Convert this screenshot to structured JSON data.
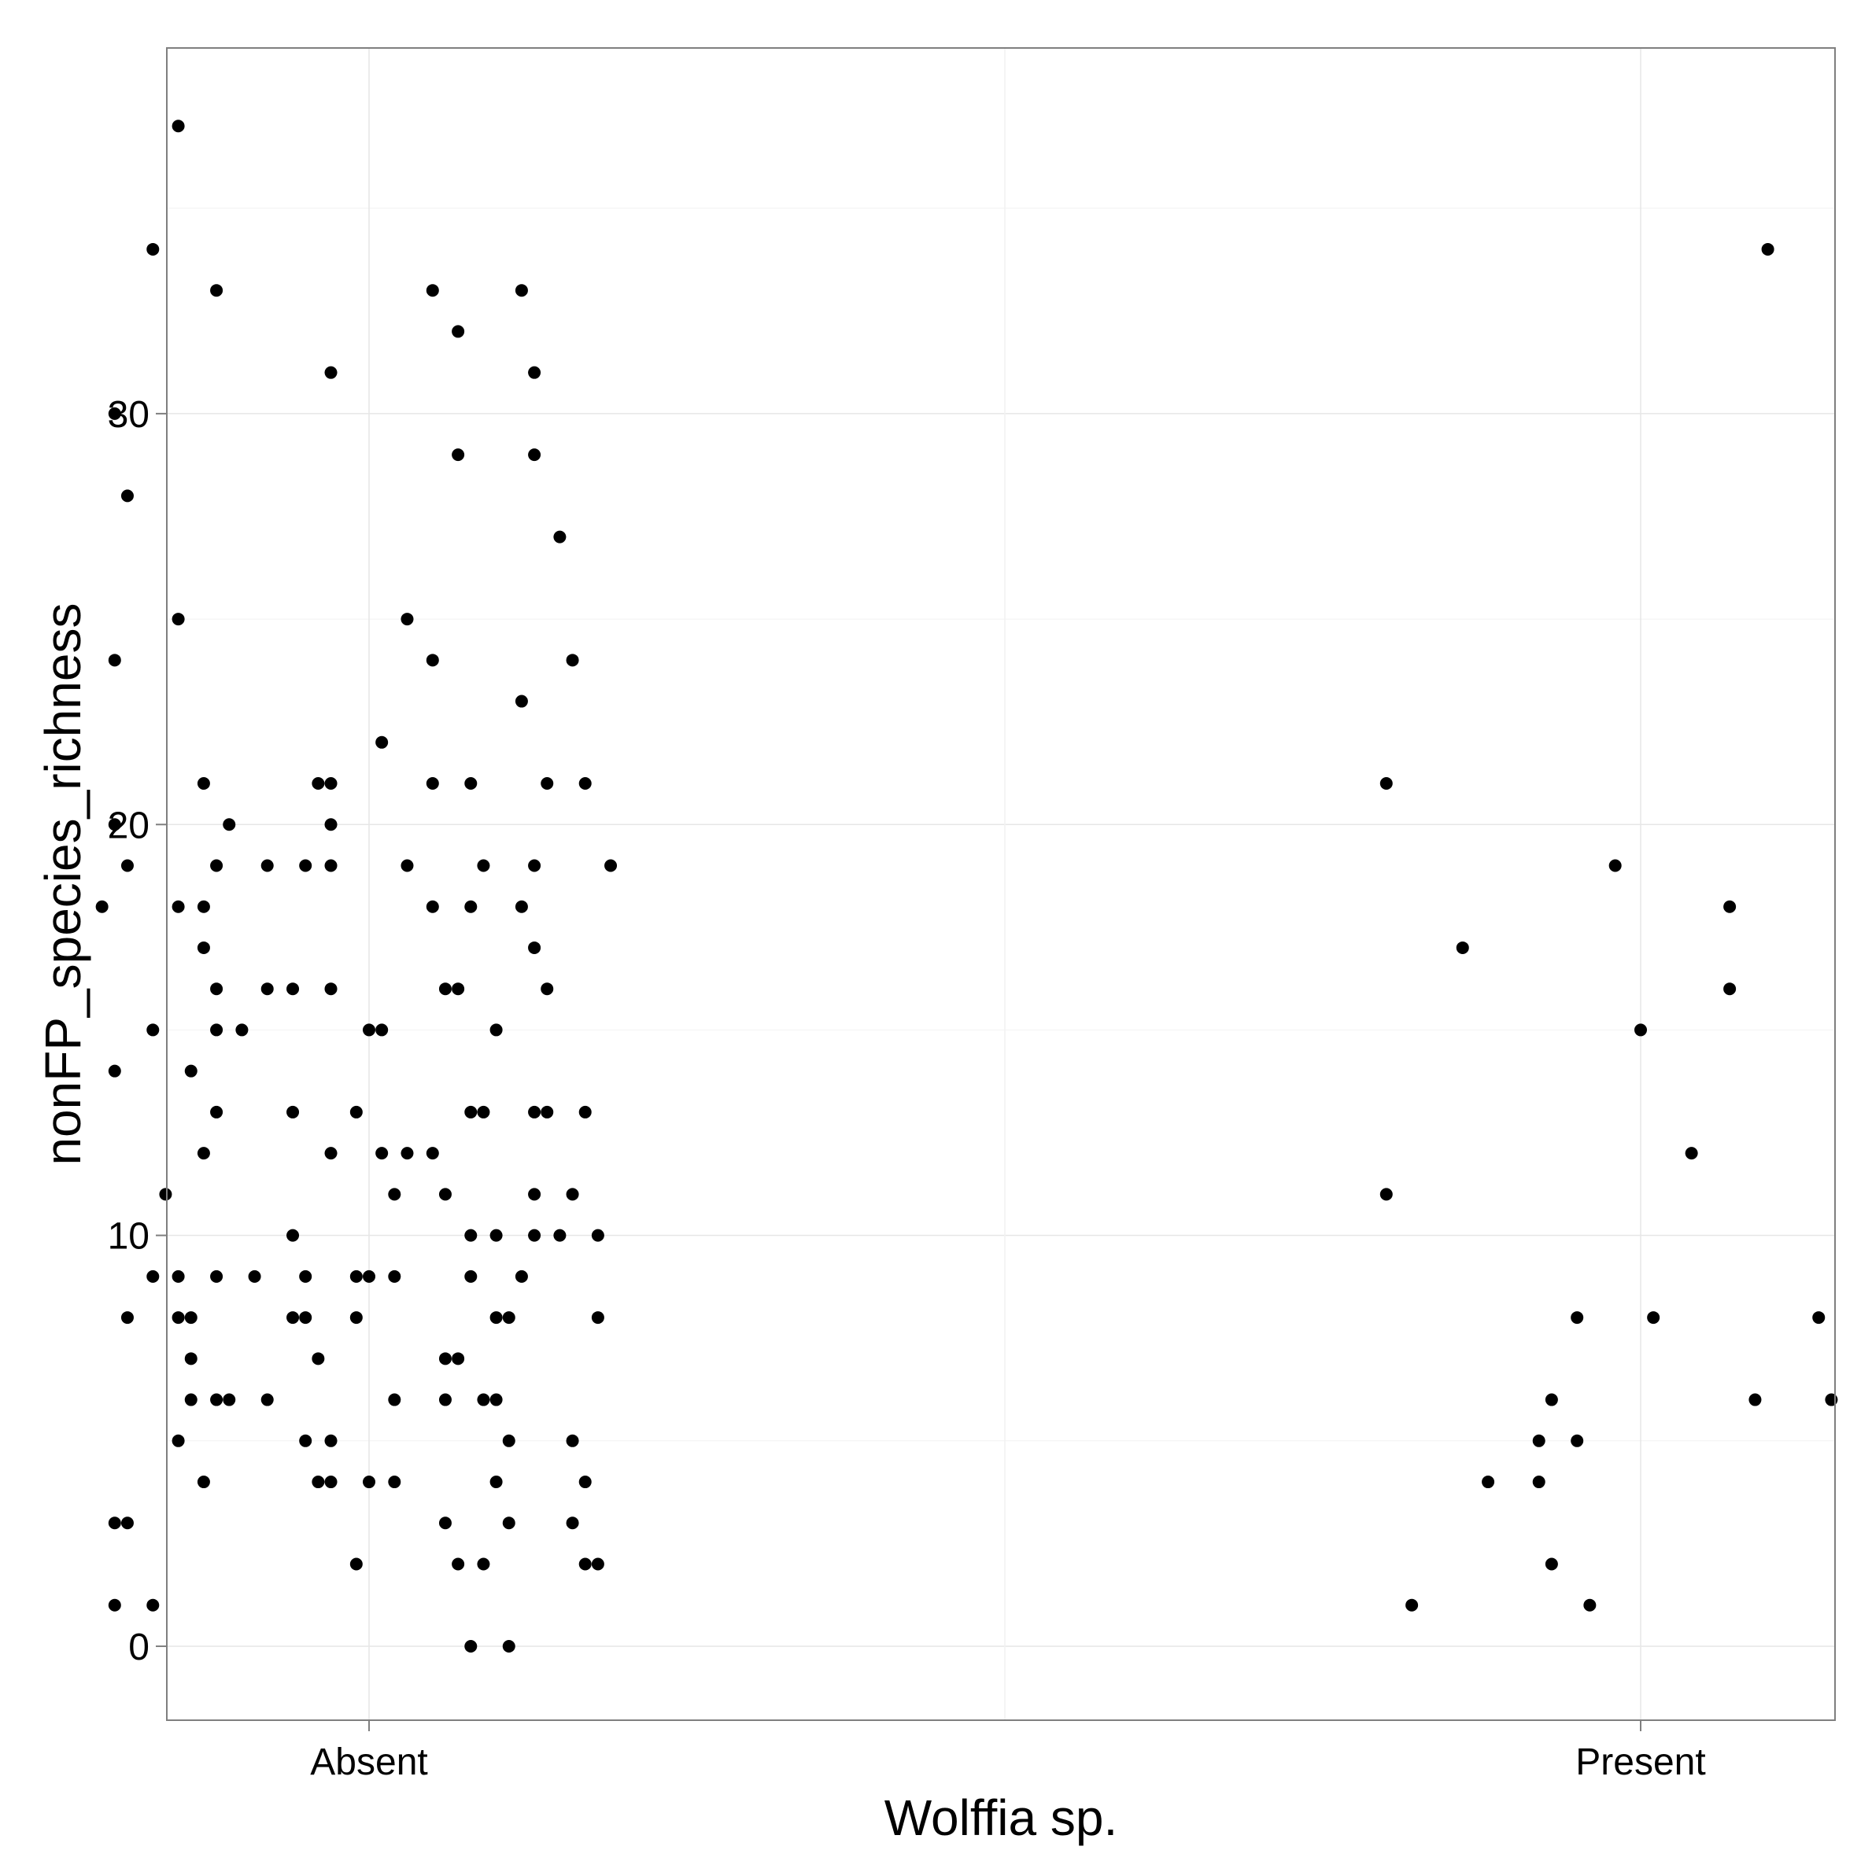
{
  "chart_data": {
    "type": "scatter",
    "title": "",
    "xlabel": "Wolffia sp.",
    "ylabel": "nonFP_species_richness",
    "categories": [
      "Absent",
      "Present"
    ],
    "y_ticks": [
      "0",
      "10",
      "20",
      "30"
    ],
    "ylim": [
      -1.8,
      38.9
    ],
    "grid": true,
    "jitter": true,
    "colors": {
      "point": "#000000",
      "grid": "#ebebeb",
      "border": "#7f7f7f",
      "background": "#ffffff"
    },
    "series": [
      {
        "category": "Absent",
        "points": [
          {
            "x": 0.85,
            "y": 37
          },
          {
            "x": 0.83,
            "y": 34
          },
          {
            "x": 0.88,
            "y": 33
          },
          {
            "x": 0.97,
            "y": 31
          },
          {
            "x": 0.8,
            "y": 30
          },
          {
            "x": 0.81,
            "y": 28
          },
          {
            "x": 0.85,
            "y": 25
          },
          {
            "x": 0.8,
            "y": 24
          },
          {
            "x": 0.87,
            "y": 21
          },
          {
            "x": 0.96,
            "y": 21
          },
          {
            "x": 0.97,
            "y": 21
          },
          {
            "x": 0.8,
            "y": 20
          },
          {
            "x": 0.89,
            "y": 20
          },
          {
            "x": 0.97,
            "y": 20
          },
          {
            "x": 0.81,
            "y": 19
          },
          {
            "x": 0.88,
            "y": 19
          },
          {
            "x": 0.92,
            "y": 19
          },
          {
            "x": 0.95,
            "y": 19
          },
          {
            "x": 0.97,
            "y": 19
          },
          {
            "x": 0.79,
            "y": 18
          },
          {
            "x": 0.85,
            "y": 18
          },
          {
            "x": 0.87,
            "y": 18
          },
          {
            "x": 0.87,
            "y": 17
          },
          {
            "x": 0.88,
            "y": 16
          },
          {
            "x": 0.92,
            "y": 16
          },
          {
            "x": 0.94,
            "y": 16
          },
          {
            "x": 0.97,
            "y": 16
          },
          {
            "x": 0.83,
            "y": 15
          },
          {
            "x": 0.88,
            "y": 15
          },
          {
            "x": 0.9,
            "y": 15
          },
          {
            "x": 0.8,
            "y": 14
          },
          {
            "x": 0.86,
            "y": 14
          },
          {
            "x": 0.88,
            "y": 13
          },
          {
            "x": 0.94,
            "y": 13
          },
          {
            "x": 0.99,
            "y": 13
          },
          {
            "x": 0.87,
            "y": 12
          },
          {
            "x": 0.97,
            "y": 12
          },
          {
            "x": 0.84,
            "y": 11
          },
          {
            "x": 0.94,
            "y": 10
          },
          {
            "x": 0.83,
            "y": 9
          },
          {
            "x": 0.85,
            "y": 9
          },
          {
            "x": 0.88,
            "y": 9
          },
          {
            "x": 0.91,
            "y": 9
          },
          {
            "x": 0.95,
            "y": 9
          },
          {
            "x": 0.99,
            "y": 9
          },
          {
            "x": 0.81,
            "y": 8
          },
          {
            "x": 0.85,
            "y": 8
          },
          {
            "x": 0.86,
            "y": 8
          },
          {
            "x": 0.94,
            "y": 8
          },
          {
            "x": 0.95,
            "y": 8
          },
          {
            "x": 0.99,
            "y": 8
          },
          {
            "x": 0.86,
            "y": 7
          },
          {
            "x": 0.96,
            "y": 7
          },
          {
            "x": 0.86,
            "y": 6
          },
          {
            "x": 0.88,
            "y": 6
          },
          {
            "x": 0.89,
            "y": 6
          },
          {
            "x": 0.92,
            "y": 6
          },
          {
            "x": 0.85,
            "y": 5
          },
          {
            "x": 0.95,
            "y": 5
          },
          {
            "x": 0.97,
            "y": 5
          },
          {
            "x": 0.87,
            "y": 4
          },
          {
            "x": 0.96,
            "y": 4
          },
          {
            "x": 0.97,
            "y": 4
          },
          {
            "x": 0.8,
            "y": 3
          },
          {
            "x": 0.81,
            "y": 3
          },
          {
            "x": 0.8,
            "y": 1
          },
          {
            "x": 0.83,
            "y": 1
          },
          {
            "x": 1.05,
            "y": 33
          },
          {
            "x": 1.12,
            "y": 33
          },
          {
            "x": 1.07,
            "y": 32
          },
          {
            "x": 1.13,
            "y": 31
          },
          {
            "x": 1.07,
            "y": 29
          },
          {
            "x": 1.13,
            "y": 29
          },
          {
            "x": 1.15,
            "y": 27
          },
          {
            "x": 1.03,
            "y": 25
          },
          {
            "x": 1.05,
            "y": 24
          },
          {
            "x": 1.16,
            "y": 24
          },
          {
            "x": 1.01,
            "y": 22
          },
          {
            "x": 1.12,
            "y": 23
          },
          {
            "x": 1.05,
            "y": 21
          },
          {
            "x": 1.08,
            "y": 21
          },
          {
            "x": 1.14,
            "y": 21
          },
          {
            "x": 1.17,
            "y": 21
          },
          {
            "x": 1.03,
            "y": 19
          },
          {
            "x": 1.09,
            "y": 19
          },
          {
            "x": 1.13,
            "y": 19
          },
          {
            "x": 1.19,
            "y": 19
          },
          {
            "x": 1.05,
            "y": 18
          },
          {
            "x": 1.08,
            "y": 18
          },
          {
            "x": 1.12,
            "y": 18
          },
          {
            "x": 1.13,
            "y": 17
          },
          {
            "x": 1.06,
            "y": 16
          },
          {
            "x": 1.07,
            "y": 16
          },
          {
            "x": 1.14,
            "y": 16
          },
          {
            "x": 1.0,
            "y": 15
          },
          {
            "x": 1.01,
            "y": 15
          },
          {
            "x": 1.1,
            "y": 15
          },
          {
            "x": 1.08,
            "y": 13
          },
          {
            "x": 1.09,
            "y": 13
          },
          {
            "x": 1.13,
            "y": 13
          },
          {
            "x": 1.14,
            "y": 13
          },
          {
            "x": 1.17,
            "y": 13
          },
          {
            "x": 1.01,
            "y": 12
          },
          {
            "x": 1.03,
            "y": 12
          },
          {
            "x": 1.05,
            "y": 12
          },
          {
            "x": 1.02,
            "y": 11
          },
          {
            "x": 1.06,
            "y": 11
          },
          {
            "x": 1.13,
            "y": 11
          },
          {
            "x": 1.16,
            "y": 11
          },
          {
            "x": 1.08,
            "y": 10
          },
          {
            "x": 1.1,
            "y": 10
          },
          {
            "x": 1.13,
            "y": 10
          },
          {
            "x": 1.15,
            "y": 10
          },
          {
            "x": 1.18,
            "y": 10
          },
          {
            "x": 1.0,
            "y": 9
          },
          {
            "x": 1.02,
            "y": 9
          },
          {
            "x": 1.08,
            "y": 9
          },
          {
            "x": 1.12,
            "y": 9
          },
          {
            "x": 1.1,
            "y": 8
          },
          {
            "x": 1.11,
            "y": 8
          },
          {
            "x": 1.18,
            "y": 8
          },
          {
            "x": 1.06,
            "y": 7
          },
          {
            "x": 1.07,
            "y": 7
          },
          {
            "x": 1.02,
            "y": 6
          },
          {
            "x": 1.06,
            "y": 6
          },
          {
            "x": 1.09,
            "y": 6
          },
          {
            "x": 1.1,
            "y": 6
          },
          {
            "x": 1.11,
            "y": 5
          },
          {
            "x": 1.16,
            "y": 5
          },
          {
            "x": 1.0,
            "y": 4
          },
          {
            "x": 1.02,
            "y": 4
          },
          {
            "x": 1.1,
            "y": 4
          },
          {
            "x": 1.17,
            "y": 4
          },
          {
            "x": 1.06,
            "y": 3
          },
          {
            "x": 1.11,
            "y": 3
          },
          {
            "x": 1.16,
            "y": 3
          },
          {
            "x": 0.99,
            "y": 2
          },
          {
            "x": 1.07,
            "y": 2
          },
          {
            "x": 1.09,
            "y": 2
          },
          {
            "x": 1.17,
            "y": 2
          },
          {
            "x": 1.18,
            "y": 2
          },
          {
            "x": 1.08,
            "y": 0
          },
          {
            "x": 1.11,
            "y": 0
          }
        ]
      },
      {
        "category": "Present",
        "points": [
          {
            "x": 2.1,
            "y": 34
          },
          {
            "x": 1.8,
            "y": 21
          },
          {
            "x": 1.98,
            "y": 19
          },
          {
            "x": 2.07,
            "y": 18
          },
          {
            "x": 1.86,
            "y": 17
          },
          {
            "x": 2.07,
            "y": 16
          },
          {
            "x": 2.0,
            "y": 15
          },
          {
            "x": 2.04,
            "y": 12
          },
          {
            "x": 1.8,
            "y": 11
          },
          {
            "x": 1.95,
            "y": 8
          },
          {
            "x": 2.01,
            "y": 8
          },
          {
            "x": 2.14,
            "y": 8
          },
          {
            "x": 2.19,
            "y": 7
          },
          {
            "x": 1.93,
            "y": 6
          },
          {
            "x": 2.09,
            "y": 6
          },
          {
            "x": 2.15,
            "y": 6
          },
          {
            "x": 1.92,
            "y": 5
          },
          {
            "x": 1.95,
            "y": 5
          },
          {
            "x": 1.88,
            "y": 4
          },
          {
            "x": 1.92,
            "y": 4
          },
          {
            "x": 1.93,
            "y": 2
          },
          {
            "x": 1.82,
            "y": 1
          },
          {
            "x": 1.96,
            "y": 1
          }
        ]
      }
    ]
  }
}
